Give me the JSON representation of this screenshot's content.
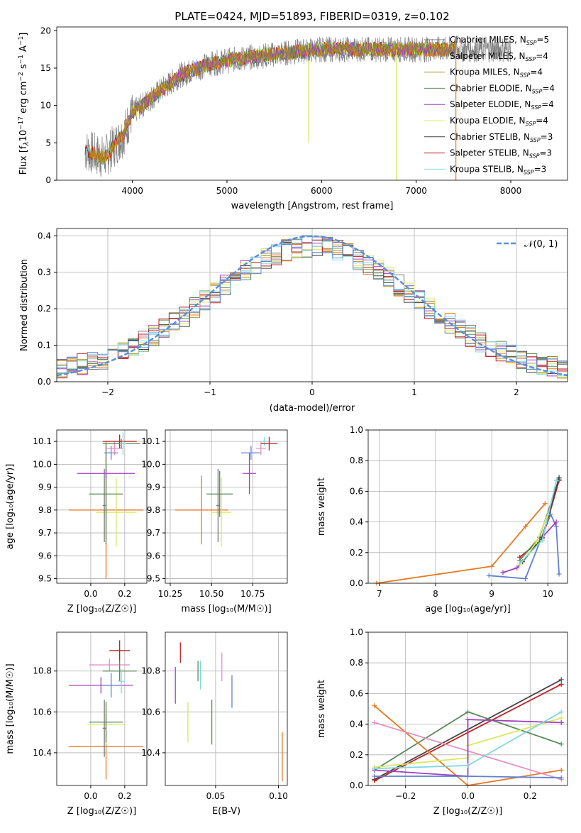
{
  "colors": {
    "chabrier_miles": "#777777",
    "salpeter_miles": "#e87722",
    "kroupa_miles": "#a08c1e",
    "chabrier_elodie": "#5a8a5a",
    "salpeter_elodie": "#a040c0",
    "kroupa_elodie": "#d8e85a",
    "chabrier_stelib": "#444444",
    "salpeter_stelib": "#c02020",
    "kroupa_stelib": "#80d8e0",
    "gauss": "#5b8fd9",
    "pink": "#e890c0",
    "blue": "#6080d0"
  },
  "spectrum": {
    "title": "PLATE=0424, MJD=51893, FIBERID=0319, z=0.102",
    "xlabel": "wavelength [Angstrom, rest frame]",
    "ylabel_main": "Flux [f",
    "ylabel_sub": "λ",
    "ylabel_rest": "10",
    "ylabel_exp": "−17",
    "ylabel_tail": " erg cm",
    "ylabel_exp2": "−2",
    "ylabel_tail2": " s",
    "ylabel_exp3": "−1",
    "ylabel_tail3": " A",
    "ylabel_exp4": "−1",
    "ylabel_end": "]",
    "xticks": [
      "4000",
      "5000",
      "6000",
      "7000",
      "8000"
    ],
    "yticks": [
      "0",
      "5",
      "10",
      "15",
      "20"
    ],
    "legend": [
      {
        "label": "Chabrier MILES, N",
        "sub": "SSP",
        "val": "=5",
        "color": "#777777"
      },
      {
        "label": "Salpeter MILES, N",
        "sub": "SSP",
        "val": "=4",
        "color": "#e87722"
      },
      {
        "label": "Kroupa MILES, N",
        "sub": "SSP",
        "val": "=4",
        "color": "#a08c1e"
      },
      {
        "label": "Chabrier ELODIE, N",
        "sub": "SSP",
        "val": "=4",
        "color": "#5a8a5a"
      },
      {
        "label": "Salpeter ELODIE, N",
        "sub": "SSP",
        "val": "=4",
        "color": "#a040c0"
      },
      {
        "label": "Kroupa ELODIE, N",
        "sub": "SSP",
        "val": "=4",
        "color": "#d8e85a"
      },
      {
        "label": "Chabrier STELIB, N",
        "sub": "SSP",
        "val": "=3",
        "color": "#444444"
      },
      {
        "label": "Salpeter STELIB, N",
        "sub": "SSP",
        "val": "=3",
        "color": "#c02020"
      },
      {
        "label": "Kroupa STELIB, N",
        "sub": "SSP",
        "val": "=3",
        "color": "#80d8e0"
      }
    ]
  },
  "histogram": {
    "xlabel": "(data-model)/error",
    "ylabel": "Normed distribution",
    "xticks": [
      "−2",
      "−1",
      "0",
      "1",
      "2"
    ],
    "yticks": [
      "0.0",
      "0.1",
      "0.2",
      "0.3",
      "0.4"
    ],
    "legend": "𝒩(0, 1)"
  },
  "panel_age_Z": {
    "xlabel": "Z [log₁₀(Z/Z☉)]",
    "ylabel": "age  [log₁₀(age/yr)]",
    "xticks": [
      "0.0",
      "0.2"
    ],
    "yticks": [
      "9.5",
      "9.6",
      "9.7",
      "9.8",
      "9.9",
      "10.0",
      "10.1"
    ]
  },
  "panel_age_mass": {
    "xlabel": "mass [log₁₀(M/M☉)]",
    "xticks": [
      "10.25",
      "10.50",
      "10.75"
    ],
    "yticks": [
      "9.5",
      "9.6",
      "9.7",
      "9.8",
      "9.9",
      "10.0",
      "10.1"
    ]
  },
  "panel_mw_age": {
    "xlabel": "age  [log₁₀(age/yr)]",
    "ylabel": "mass weight",
    "xticks": [
      "7",
      "8",
      "9",
      "10"
    ],
    "yticks": [
      "0.0",
      "0.2",
      "0.4",
      "0.6",
      "0.8",
      "1.0"
    ]
  },
  "panel_mass_Z": {
    "xlabel": "Z [log₁₀(Z/Z☉)]",
    "ylabel": "mass [log₁₀(M/M☉)]",
    "xticks": [
      "0.0",
      "0.2"
    ],
    "yticks": [
      "10.4",
      "10.6",
      "10.8"
    ]
  },
  "panel_mass_ebv": {
    "xlabel": "E(B-V)",
    "xticks": [
      "0.05",
      "0.10"
    ],
    "yticks": [
      "10.4",
      "10.6",
      "10.8"
    ]
  },
  "panel_mw_Z": {
    "xlabel": "Z [log₁₀(Z/Z☉)]",
    "ylabel": "mass weight",
    "xticks": [
      "−0.2",
      "0.0",
      "0.2"
    ],
    "yticks": [
      "0.0",
      "0.2",
      "0.4",
      "0.6",
      "0.8",
      "1.0"
    ]
  },
  "chart_data": [
    {
      "type": "line",
      "title": "PLATE=0424, MJD=51893, FIBERID=0319, z=0.102",
      "xlabel": "wavelength [Angstrom, rest frame]",
      "xlim": [
        3200,
        8600
      ],
      "ylim": [
        0,
        20.5
      ],
      "shape_x": [
        3500,
        3700,
        3900,
        4000,
        4100,
        4300,
        4500,
        4800,
        5000,
        5300,
        5600,
        6000,
        6400,
        6800,
        7000,
        7200,
        7400
      ],
      "shape_y": [
        4,
        3,
        6,
        9,
        10,
        12,
        14,
        15.5,
        16,
        16.5,
        17,
        17.5,
        17.5,
        17.5,
        17.5,
        17.5,
        17.5
      ]
    },
    {
      "type": "bar",
      "xlabel": "(data-model)/error",
      "ylabel": "Normed distribution",
      "xlim": [
        -2.5,
        2.5
      ],
      "ylim": [
        0,
        0.42
      ],
      "bin_width": 0.1,
      "approx_peak": 0.4
    },
    {
      "type": "scatter",
      "xlabel": "Z [log₁₀(Z/Z☉)]",
      "ylabel": "age  [log₁₀(age/yr)]",
      "points": [
        {
          "x": 0.09,
          "y": 9.8,
          "xerr": 0.22,
          "yerr": 0.3,
          "c": "#e87722"
        },
        {
          "x": 0.15,
          "y": 9.79,
          "xerr": 0.12,
          "yerr": 0.15,
          "c": "#d8e85a"
        },
        {
          "x": 0.09,
          "y": 9.87,
          "xerr": 0.1,
          "yerr": 0.22,
          "c": "#5a8a5a"
        },
        {
          "x": 0.08,
          "y": 9.82,
          "xerr": 0.01,
          "yerr": 0.16,
          "c": "#777777"
        },
        {
          "x": 0.09,
          "y": 9.96,
          "xerr": 0.17,
          "yerr": 0.02,
          "c": "#a040c0"
        },
        {
          "x": 0.12,
          "y": 10.05,
          "xerr": 0.04,
          "yerr": 0.03,
          "c": "#6080d0"
        },
        {
          "x": 0.14,
          "y": 10.07,
          "xerr": 0.05,
          "yerr": 0.03,
          "c": "#e890c0"
        },
        {
          "x": 0.18,
          "y": 10.09,
          "xerr": 0.11,
          "yerr": 0.02,
          "c": "#5a8a5a"
        },
        {
          "x": 0.17,
          "y": 10.1,
          "xerr": 0.1,
          "yerr": 0.03,
          "c": "#c02020"
        },
        {
          "x": 0.19,
          "y": 10.09,
          "xerr": 0.02,
          "yerr": 0.05,
          "c": "#80d8e0"
        }
      ]
    },
    {
      "type": "scatter",
      "xlabel": "mass [log₁₀(M/M☉)]",
      "points": [
        {
          "x": 10.44,
          "y": 9.8,
          "xerr": 0.16,
          "yerr": 0.15,
          "c": "#e87722"
        },
        {
          "x": 10.56,
          "y": 9.79,
          "xerr": 0.06,
          "yerr": 0.15,
          "c": "#d8e85a"
        },
        {
          "x": 10.55,
          "y": 9.87,
          "xerr": 0.08,
          "yerr": 0.1,
          "c": "#5a8a5a"
        },
        {
          "x": 10.54,
          "y": 9.82,
          "xerr": 0.01,
          "yerr": 0.16,
          "c": "#777777"
        },
        {
          "x": 10.73,
          "y": 9.96,
          "xerr": 0.04,
          "yerr": 0.09,
          "c": "#a040c0"
        },
        {
          "x": 10.74,
          "y": 10.05,
          "xerr": 0.06,
          "yerr": 0.03,
          "c": "#6080d0"
        },
        {
          "x": 10.8,
          "y": 10.07,
          "xerr": 0.03,
          "yerr": 0.03,
          "c": "#e890c0"
        },
        {
          "x": 10.82,
          "y": 10.1,
          "xerr": 0.02,
          "yerr": 0.02,
          "c": "#80d8e0"
        },
        {
          "x": 10.85,
          "y": 10.09,
          "xerr": 0.05,
          "yerr": 0.03,
          "c": "#c02020"
        }
      ]
    },
    {
      "type": "line",
      "xlabel": "age  [log₁₀(age/yr)]",
      "ylabel": "mass weight",
      "xlim": [
        6.8,
        10.35
      ],
      "ylim": [
        0,
        1
      ],
      "series": [
        {
          "c": "#e87722",
          "x": [
            6.95,
            9.0,
            9.6,
            9.95
          ],
          "y": [
            0.0,
            0.11,
            0.37,
            0.52
          ]
        },
        {
          "c": "#6080d0",
          "x": [
            8.95,
            9.6,
            10.05,
            10.15,
            10.2
          ],
          "y": [
            0.05,
            0.03,
            0.45,
            0.37,
            0.06
          ]
        },
        {
          "c": "#a040c0",
          "x": [
            9.2,
            9.45,
            9.9,
            10.15
          ],
          "y": [
            0.07,
            0.1,
            0.3,
            0.4
          ]
        },
        {
          "c": "#c02020",
          "x": [
            9.5,
            9.9,
            10.2
          ],
          "y": [
            0.17,
            0.29,
            0.67
          ]
        },
        {
          "c": "#5a8a5a",
          "x": [
            9.5,
            9.85,
            10.2
          ],
          "y": [
            0.15,
            0.3,
            0.68
          ]
        },
        {
          "c": "#444444",
          "x": [
            9.55,
            9.9,
            10.2
          ],
          "y": [
            0.14,
            0.3,
            0.69
          ]
        },
        {
          "c": "#d8e85a",
          "x": [
            9.5,
            9.8,
            10.0
          ],
          "y": [
            0.12,
            0.27,
            0.45
          ]
        },
        {
          "c": "#80d8e0",
          "x": [
            9.5,
            9.9,
            10.15
          ],
          "y": [
            0.13,
            0.28,
            0.67
          ]
        }
      ]
    },
    {
      "type": "scatter",
      "xlabel": "Z [log₁₀(Z/Z☉)]",
      "ylabel": "mass [log₁₀(M/M☉)]",
      "points": [
        {
          "x": 0.09,
          "y": 10.43,
          "xerr": 0.22,
          "yerr": 0.16,
          "c": "#e87722"
        },
        {
          "x": 0.09,
          "y": 10.54,
          "xerr": 0.11,
          "yerr": 0.1,
          "c": "#d8e85a"
        },
        {
          "x": 0.09,
          "y": 10.55,
          "xerr": 0.1,
          "yerr": 0.1,
          "c": "#5a8a5a"
        },
        {
          "x": 0.08,
          "y": 10.52,
          "xerr": 0.01,
          "yerr": 0.14,
          "c": "#777777"
        },
        {
          "x": 0.06,
          "y": 10.73,
          "xerr": 0.19,
          "yerr": 0.04,
          "c": "#a040c0"
        },
        {
          "x": 0.12,
          "y": 10.73,
          "xerr": 0.06,
          "yerr": 0.06,
          "c": "#6080d0"
        },
        {
          "x": 0.11,
          "y": 10.83,
          "xerr": 0.12,
          "yerr": 0.03,
          "c": "#e890c0"
        },
        {
          "x": 0.17,
          "y": 10.8,
          "xerr": 0.1,
          "yerr": 0.05,
          "c": "#5a8a5a"
        },
        {
          "x": 0.18,
          "y": 10.75,
          "xerr": 0.02,
          "yerr": 0.06,
          "c": "#80d8e0"
        },
        {
          "x": 0.17,
          "y": 10.9,
          "xerr": 0.06,
          "yerr": 0.05,
          "c": "#c02020"
        }
      ]
    },
    {
      "type": "scatter",
      "xlabel": "E(B-V)",
      "points": [
        {
          "x": 0.103,
          "y": 10.38,
          "yerr": 0.12,
          "c": "#e87722"
        },
        {
          "x": 0.063,
          "y": 10.7,
          "yerr": 0.08,
          "c": "#6080d0"
        },
        {
          "x": 0.055,
          "y": 10.82,
          "yerr": 0.07,
          "c": "#e890c0"
        },
        {
          "x": 0.047,
          "y": 10.55,
          "yerr": 0.11,
          "c": "#5a8a5a"
        },
        {
          "x": 0.038,
          "y": 10.78,
          "yerr": 0.07,
          "c": "#80d8e0"
        },
        {
          "x": 0.036,
          "y": 10.8,
          "yerr": 0.05,
          "c": "#5a8a5a"
        },
        {
          "x": 0.028,
          "y": 10.55,
          "yerr": 0.1,
          "c": "#d8e85a"
        },
        {
          "x": 0.022,
          "y": 10.89,
          "yerr": 0.05,
          "c": "#c02020"
        },
        {
          "x": 0.018,
          "y": 10.73,
          "yerr": 0.09,
          "c": "#a040c0"
        }
      ]
    },
    {
      "type": "line",
      "xlabel": "Z [log₁₀(Z/Z☉)]",
      "ylabel": "mass weight",
      "xlim": [
        -0.32,
        0.32
      ],
      "ylim": [
        0,
        1
      ],
      "series": [
        {
          "c": "#444444",
          "x": [
            -0.3,
            0.3
          ],
          "y": [
            0.04,
            0.69
          ]
        },
        {
          "c": "#c02020",
          "x": [
            -0.3,
            0.3
          ],
          "y": [
            0.03,
            0.66
          ]
        },
        {
          "c": "#5a8a5a",
          "x": [
            -0.3,
            0.0,
            0.3
          ],
          "y": [
            0.1,
            0.48,
            0.27
          ]
        },
        {
          "c": "#e87722",
          "x": [
            -0.3,
            0.0,
            0.3
          ],
          "y": [
            0.52,
            0.0,
            0.1
          ]
        },
        {
          "c": "#e890c0",
          "x": [
            -0.3,
            0.3
          ],
          "y": [
            0.41,
            0.04
          ]
        },
        {
          "c": "#d8e85a",
          "x": [
            -0.3,
            0.0,
            0.0,
            0.3
          ],
          "y": [
            0.12,
            0.18,
            0.26,
            0.44
          ]
        },
        {
          "c": "#a040c0",
          "x": [
            -0.3,
            0.0,
            0.0,
            0.3
          ],
          "y": [
            0.1,
            0.06,
            0.43,
            0.41
          ]
        },
        {
          "c": "#6080d0",
          "x": [
            -0.3,
            0.0,
            0.3
          ],
          "y": [
            0.06,
            0.06,
            0.05
          ]
        },
        {
          "c": "#80d8e0",
          "x": [
            -0.3,
            0.0,
            0.3
          ],
          "y": [
            0.11,
            0.13,
            0.48
          ]
        }
      ]
    }
  ]
}
